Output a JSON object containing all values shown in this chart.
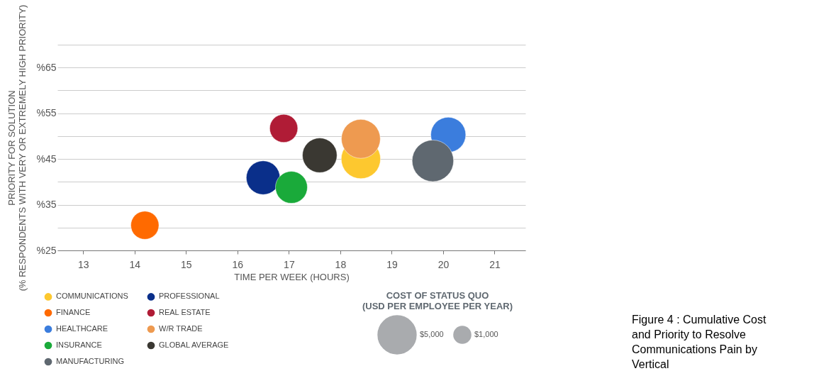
{
  "chart_data": {
    "type": "bubble",
    "xlabel": "TIME PER WEEK (HOURS)",
    "ylabel": "PRIORITY FOR SOLUTION\n(% RESPONDENTS WITH VERY OR EXTREMELY HIGH PRIORITY)",
    "legend_title": "COST OF STATUS QUO\n(USD PER EMPLOYEE PER YEAR)",
    "xlim": [
      12.5,
      21.6
    ],
    "xticks": [
      13,
      14,
      15,
      16,
      17,
      18,
      19,
      20,
      21
    ],
    "ylim": [
      25,
      70
    ],
    "yticks": [
      {
        "value": 25,
        "label": "%25"
      },
      {
        "value": 30,
        "label": null
      },
      {
        "value": 35,
        "label": "%35"
      },
      {
        "value": 40,
        "label": null
      },
      {
        "value": 45,
        "label": "%45"
      },
      {
        "value": 50,
        "label": null
      },
      {
        "value": 55,
        "label": "%55"
      },
      {
        "value": 60,
        "label": null
      },
      {
        "value": 65,
        "label": "%65"
      },
      {
        "value": 70,
        "label": null
      }
    ],
    "grid": "y",
    "legend": "bottom",
    "size_legend": [
      {
        "value": 5000,
        "label": "$5,000"
      },
      {
        "value": 1000,
        "label": "$1,000"
      }
    ],
    "series": [
      {
        "name": "COMMUNICATIONS",
        "color": "#fdc82f",
        "x": [
          18.4
        ],
        "values": [
          45.0
        ],
        "sizes": [
          5300
        ]
      },
      {
        "name": "PROFESSIONAL",
        "color": "#0a2f8a",
        "x": [
          16.5
        ],
        "values": [
          40.9
        ],
        "sizes": [
          3900
        ]
      },
      {
        "name": "FINANCE",
        "color": "#ff6a00",
        "x": [
          14.2
        ],
        "values": [
          30.5
        ],
        "sizes": [
          2700
        ]
      },
      {
        "name": "REAL ESTATE",
        "color": "#b01c36",
        "x": [
          16.9
        ],
        "values": [
          51.7
        ],
        "sizes": [
          2700
        ]
      },
      {
        "name": "HEALTHCARE",
        "color": "#3b7ddd",
        "x": [
          20.1
        ],
        "values": [
          50.3
        ],
        "sizes": [
          4200
        ]
      },
      {
        "name": "W/R TRADE",
        "color": "#ee9a50",
        "x": [
          18.4
        ],
        "values": [
          49.4
        ],
        "sizes": [
          5200
        ]
      },
      {
        "name": "INSURANCE",
        "color": "#1aaa3a",
        "x": [
          17.05
        ],
        "values": [
          38.8
        ],
        "sizes": [
          3500
        ]
      },
      {
        "name": "GLOBAL AVERAGE",
        "color": "#3a3832",
        "x": [
          17.6
        ],
        "values": [
          45.8
        ],
        "sizes": [
          4100
        ]
      },
      {
        "name": "MANUFACTURING",
        "color": "#5f6870",
        "x": [
          19.8
        ],
        "values": [
          44.6
        ],
        "sizes": [
          5900
        ]
      }
    ],
    "annotations": [
      "Figure 4 : Cumulative Cost and Priority to Resolve Communications Pain by Vertical"
    ]
  }
}
